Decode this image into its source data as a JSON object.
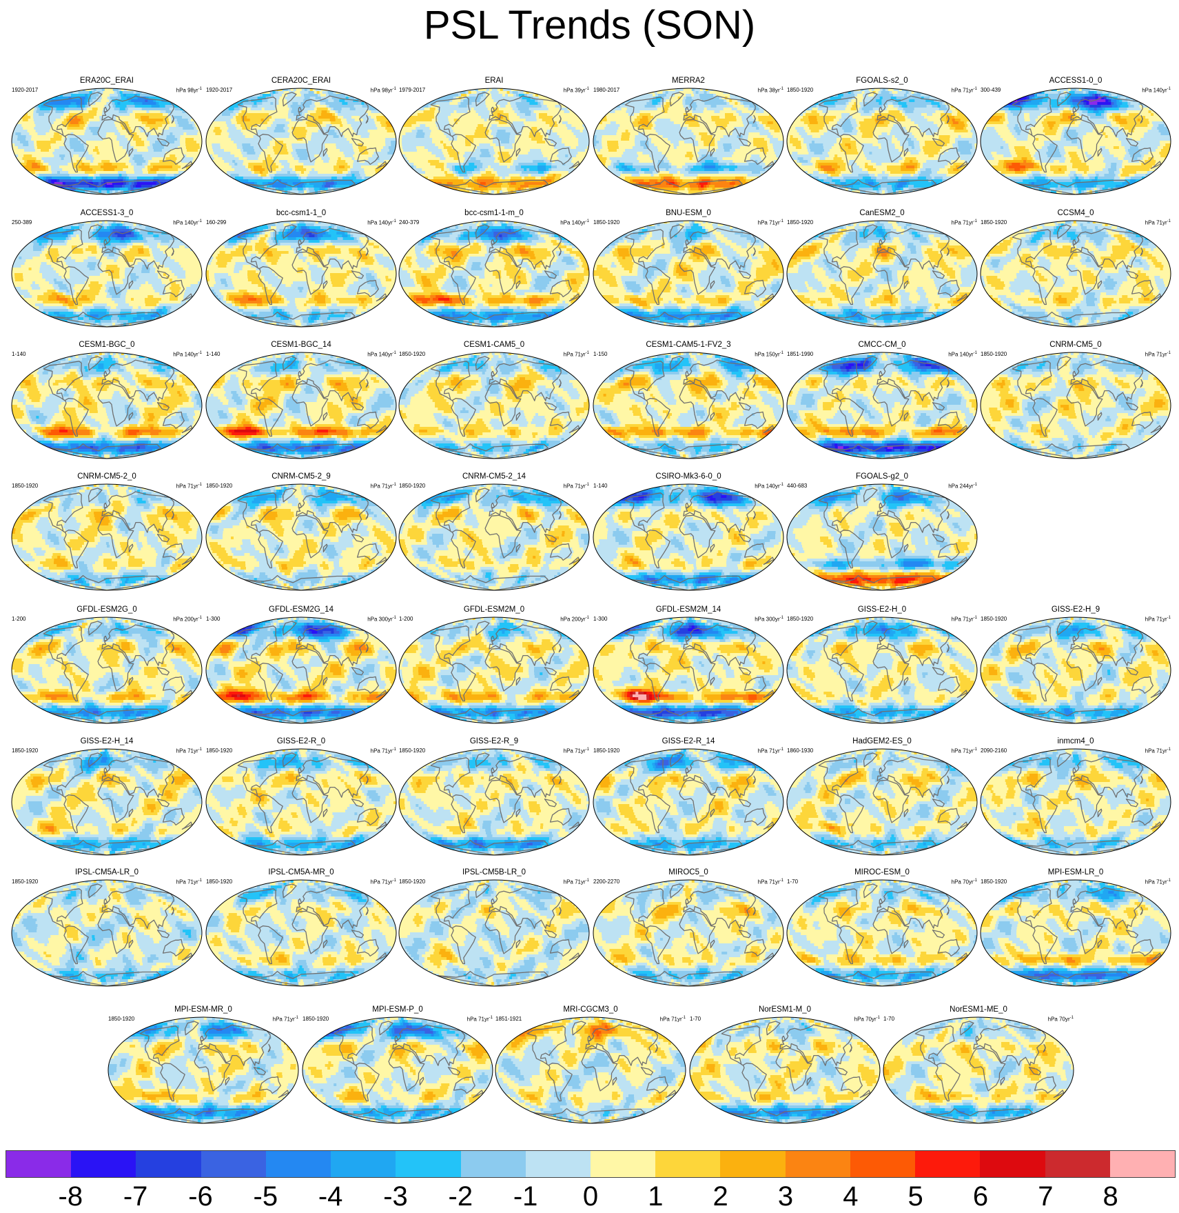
{
  "chart_data": {
    "type": "heatmap",
    "title": "PSL Trends (SON)",
    "units": "hPa",
    "projection": "robinson",
    "colorbar": {
      "levels": [
        -8,
        -7,
        -6,
        -5,
        -4,
        -3,
        -2,
        -1,
        0,
        1,
        2,
        3,
        4,
        5,
        6,
        7,
        8
      ],
      "colors": [
        "#8a2be8",
        "#2a13f5",
        "#2540e0",
        "#3a63e2",
        "#2488f2",
        "#20a7f2",
        "#23c3f8",
        "#8ccbef",
        "#bde2f3",
        "#fff7a6",
        "#fdd63a",
        "#fbb10f",
        "#fb8412",
        "#fd5a05",
        "#fd1a0b",
        "#dd0a0f",
        "#cc2a2e",
        "#ffb0b2"
      ]
    },
    "panels": [
      {
        "name": "ERA20C_ERAI",
        "period": "1920-2017",
        "scale": "hPa 98yr",
        "ant": -7,
        "so": 2,
        "np": -4,
        "ps": 0.5,
        "nh": 1.5,
        "tr": 0,
        "seed": 11
      },
      {
        "name": "CERA20C_ERAI",
        "period": "1920-2017",
        "scale": "hPa 98yr",
        "ant": -4,
        "so": 1,
        "np": -1.5,
        "ps": 0.5,
        "nh": 1.5,
        "tr": 0,
        "seed": 12
      },
      {
        "name": "ERAI",
        "period": "1979-2017",
        "scale": "hPa 39yr",
        "ant": 3,
        "so": -2,
        "np": -1,
        "ps": 2,
        "nh": 1,
        "tr": 0.5,
        "seed": 13
      },
      {
        "name": "MERRA2",
        "period": "1980-2017",
        "scale": "hPa 38yr",
        "ant": 4,
        "so": -3,
        "np": -1,
        "ps": 2,
        "nh": 1.5,
        "tr": 0.3,
        "seed": 14
      },
      {
        "name": "FGOALS-s2_0",
        "period": "1850-1920",
        "scale": "hPa 71yr",
        "ant": -3,
        "so": 1.5,
        "np": -2,
        "ps": 1,
        "nh": 1.5,
        "tr": 0.4,
        "seed": 15
      },
      {
        "name": "ACCESS1-0_0",
        "period": "300-439",
        "scale": "hPa 140yr",
        "ant": -3,
        "so": 1,
        "np": -7,
        "ps": 4.5,
        "nh": 1.5,
        "tr": 0,
        "seed": 16
      },
      {
        "name": "ACCESS1-3_0",
        "period": "250-389",
        "scale": "hPa 140yr",
        "ant": -3,
        "so": 1,
        "np": -5,
        "ps": 3,
        "nh": 1,
        "tr": 0,
        "seed": 17
      },
      {
        "name": "bcc-csm1-1_0",
        "period": "160-299",
        "scale": "hPa 140yr",
        "ant": -2,
        "so": 2,
        "np": -5,
        "ps": 2,
        "nh": 2,
        "tr": 0.7,
        "seed": 18
      },
      {
        "name": "bcc-csm1-1-m_0",
        "period": "240-379",
        "scale": "hPa 140yr",
        "ant": -4,
        "so": 3,
        "np": -5,
        "ps": 2.5,
        "nh": 2.5,
        "tr": 0.8,
        "seed": 19
      },
      {
        "name": "BNU-ESM_0",
        "period": "1850-1920",
        "scale": "hPa 71yr",
        "ant": -4,
        "so": 1.5,
        "np": -2,
        "ps": 1,
        "nh": 1.5,
        "tr": 0.6,
        "seed": 20
      },
      {
        "name": "CanESM2_0",
        "period": "1850-1920",
        "scale": "hPa 71yr",
        "ant": -3,
        "so": 1,
        "np": -2,
        "ps": 0.5,
        "nh": 1.5,
        "tr": 0.4,
        "seed": 21
      },
      {
        "name": "CCSM4_0",
        "period": "1850-1920",
        "scale": "hPa 71yr",
        "ant": -1,
        "so": 1,
        "np": -2,
        "ps": 0.5,
        "nh": 1.5,
        "tr": 0.7,
        "seed": 22
      },
      {
        "name": "CESM1-BGC_0",
        "period": "1-140",
        "scale": "hPa 140yr",
        "ant": -5,
        "so": 3.5,
        "np": -2,
        "ps": 1,
        "nh": 2,
        "tr": 0.8,
        "seed": 23
      },
      {
        "name": "CESM1-BGC_14",
        "period": "1-140",
        "scale": "hPa 140yr",
        "ant": -5,
        "so": 4.5,
        "np": -2,
        "ps": 1,
        "nh": 2,
        "tr": 0.8,
        "seed": 24
      },
      {
        "name": "CESM1-CAM5_0",
        "period": "1850-1920",
        "scale": "hPa 71yr",
        "ant": -2,
        "so": 1.5,
        "np": -2,
        "ps": 0.5,
        "nh": 1.5,
        "tr": 0.6,
        "seed": 25
      },
      {
        "name": "CESM1-CAM5-1-FV2_3",
        "period": "1-150",
        "scale": "hPa 150yr",
        "ant": -2,
        "so": 3,
        "np": -3,
        "ps": 1.5,
        "nh": 2,
        "tr": 0.8,
        "seed": 26
      },
      {
        "name": "CMCC-CM_0",
        "period": "1851-1990",
        "scale": "hPa 140yr",
        "ant": -7,
        "so": 3,
        "np": -6,
        "ps": 1.5,
        "nh": 1,
        "tr": 0,
        "seed": 27
      },
      {
        "name": "CNRM-CM5_0",
        "period": "1850-1920",
        "scale": "hPa 71yr",
        "ant": -1,
        "so": 0.5,
        "np": -1.5,
        "ps": 0.5,
        "nh": 1.5,
        "tr": 0.7,
        "seed": 28
      },
      {
        "name": "CNRM-CM5-2_0",
        "period": "1850-1920",
        "scale": "hPa 71yr",
        "ant": -2,
        "so": 1,
        "np": -1,
        "ps": 0.5,
        "nh": 1.5,
        "tr": 0.8,
        "seed": 29
      },
      {
        "name": "CNRM-CM5-2_9",
        "period": "1850-1920",
        "scale": "hPa 71yr",
        "ant": -1,
        "so": 1,
        "np": -3,
        "ps": 0.5,
        "nh": 1.5,
        "tr": 0.7,
        "seed": 30
      },
      {
        "name": "CNRM-CM5-2_14",
        "period": "1850-1920",
        "scale": "hPa 71yr",
        "ant": -1,
        "so": 1,
        "np": -3,
        "ps": 0.5,
        "nh": 1.5,
        "tr": 0.7,
        "seed": 31
      },
      {
        "name": "CSIRO-Mk3-6-0_0",
        "period": "1-140",
        "scale": "hPa 140yr",
        "ant": -4,
        "so": 1,
        "np": -6,
        "ps": 1,
        "nh": 1,
        "tr": 0.3,
        "seed": 32
      },
      {
        "name": "FGOALS-g2_0",
        "period": "440-683",
        "scale": "hPa 244yr",
        "ant": 5,
        "so": -4,
        "np": -4,
        "ps": 3,
        "nh": 0.5,
        "tr": 0,
        "seed": 33
      },
      {
        "name": "GFDL-ESM2G_0",
        "period": "1-200",
        "scale": "hPa 200yr",
        "ant": -4,
        "so": 2,
        "np": -2,
        "ps": 1,
        "nh": 1.5,
        "tr": 0.7,
        "seed": 34
      },
      {
        "name": "GFDL-ESM2G_14",
        "period": "1-300",
        "scale": "hPa 300yr",
        "ant": -5,
        "so": 3.5,
        "np": -6,
        "ps": 4.5,
        "nh": 2,
        "tr": 0.7,
        "seed": 35
      },
      {
        "name": "GFDL-ESM2M_0",
        "period": "1-200",
        "scale": "hPa 200yr",
        "ant": -4,
        "so": 2.5,
        "np": -2,
        "ps": 1.5,
        "nh": 1.5,
        "tr": 0.7,
        "seed": 36
      },
      {
        "name": "GFDL-ESM2M_14",
        "period": "1-300",
        "scale": "hPa 300yr",
        "ant": -6,
        "so": 4,
        "np": -6,
        "ps": 5.5,
        "nh": 2,
        "tr": 0.7,
        "seed": 37
      },
      {
        "name": "GISS-E2-H_0",
        "period": "1850-1920",
        "scale": "hPa 71yr",
        "ant": -3,
        "so": 0.5,
        "np": -4,
        "ps": 0.5,
        "nh": 1.5,
        "tr": 0.6,
        "seed": 38
      },
      {
        "name": "GISS-E2-H_9",
        "period": "1850-1920",
        "scale": "hPa 71yr",
        "ant": -3,
        "so": 0.5,
        "np": -3,
        "ps": 1.5,
        "nh": 1.5,
        "tr": 0.6,
        "seed": 39
      },
      {
        "name": "GISS-E2-H_14",
        "period": "1850-1920",
        "scale": "hPa 71yr",
        "ant": -3,
        "so": 0.5,
        "np": -3,
        "ps": 2,
        "nh": 1.5,
        "tr": 0.6,
        "seed": 40
      },
      {
        "name": "GISS-E2-R_0",
        "period": "1850-1920",
        "scale": "hPa 71yr",
        "ant": -3,
        "so": 0.5,
        "np": -3,
        "ps": 0.5,
        "nh": 1.5,
        "tr": 0.6,
        "seed": 41
      },
      {
        "name": "GISS-E2-R_9",
        "period": "1850-1920",
        "scale": "hPa 71yr",
        "ant": -4,
        "so": 0.5,
        "np": -2,
        "ps": 0.5,
        "nh": 1.5,
        "tr": 0.5,
        "seed": 42
      },
      {
        "name": "GISS-E2-R_14",
        "period": "1850-1920",
        "scale": "hPa 71yr",
        "ant": -3,
        "so": 0.5,
        "np": -4,
        "ps": 0.5,
        "nh": 1.5,
        "tr": 0.5,
        "seed": 43
      },
      {
        "name": "HadGEM2-ES_0",
        "period": "1860-1930",
        "scale": "hPa 71yr",
        "ant": -2,
        "so": 0.5,
        "np": -1,
        "ps": 2.5,
        "nh": 1.5,
        "tr": 0.3,
        "seed": 44
      },
      {
        "name": "inmcm4_0",
        "period": "2090-2160",
        "scale": "hPa 71yr",
        "ant": -2,
        "so": 0.5,
        "np": -2,
        "ps": 1,
        "nh": 1.5,
        "tr": 0.5,
        "seed": 45
      },
      {
        "name": "IPSL-CM5A-LR_0",
        "period": "1850-1920",
        "scale": "hPa 71yr",
        "ant": -2,
        "so": -0.5,
        "np": -1,
        "ps": 0,
        "nh": 0.5,
        "tr": -0.5,
        "seed": 46
      },
      {
        "name": "IPSL-CM5A-MR_0",
        "period": "1850-1920",
        "scale": "hPa 71yr",
        "ant": -2,
        "so": 1,
        "np": -2,
        "ps": 0.5,
        "nh": 1,
        "tr": -0.3,
        "seed": 47
      },
      {
        "name": "IPSL-CM5B-LR_0",
        "period": "1850-1920",
        "scale": "hPa 71yr",
        "ant": -1,
        "so": -0.5,
        "np": -1,
        "ps": 2,
        "nh": 0.5,
        "tr": -0.5,
        "seed": 48
      },
      {
        "name": "MIROC5_0",
        "period": "2200-2270",
        "scale": "hPa 71yr",
        "ant": -2,
        "so": 1,
        "np": -1,
        "ps": 0.5,
        "nh": 1.5,
        "tr": 0.5,
        "seed": 49
      },
      {
        "name": "MIROC-ESM_0",
        "period": "1-70",
        "scale": "hPa 70yr",
        "ant": -3,
        "so": 2,
        "np": -1.5,
        "ps": 0.5,
        "nh": 1.5,
        "tr": 0.6,
        "seed": 50
      },
      {
        "name": "MPI-ESM-LR_0",
        "period": "1850-1920",
        "scale": "hPa 71yr",
        "ant": -5,
        "so": 2.5,
        "np": -3,
        "ps": 0.5,
        "nh": 1.5,
        "tr": 0.2,
        "seed": 51
      },
      {
        "name": "MPI-ESM-MR_0",
        "period": "1850-1920",
        "scale": "hPa 71yr",
        "ant": -4,
        "so": 1,
        "np": -4,
        "ps": 2.5,
        "nh": 1.5,
        "tr": 0.3,
        "seed": 52
      },
      {
        "name": "MPI-ESM-P_0",
        "period": "1850-1920",
        "scale": "hPa 71yr",
        "ant": -3,
        "so": 1,
        "np": -5,
        "ps": 0.5,
        "nh": 1.5,
        "tr": 0.3,
        "seed": 53
      },
      {
        "name": "MRI-CGCM3_0",
        "period": "1851-1921",
        "scale": "hPa 71yr",
        "ant": -1,
        "so": 0.5,
        "np": 3,
        "ps": 0.5,
        "nh": 0.5,
        "tr": -0.3,
        "seed": 54
      },
      {
        "name": "NorESM1-M_0",
        "period": "1-70",
        "scale": "hPa 70yr",
        "ant": -4,
        "so": 1.5,
        "np": -1,
        "ps": 0.5,
        "nh": 1.5,
        "tr": 0.6,
        "seed": 55
      },
      {
        "name": "NorESM1-ME_0",
        "period": "1-70",
        "scale": "hPa 70yr",
        "ant": -3,
        "so": 1.5,
        "np": -1,
        "ps": 1,
        "nh": 1.5,
        "tr": 0.6,
        "seed": 56
      }
    ]
  }
}
